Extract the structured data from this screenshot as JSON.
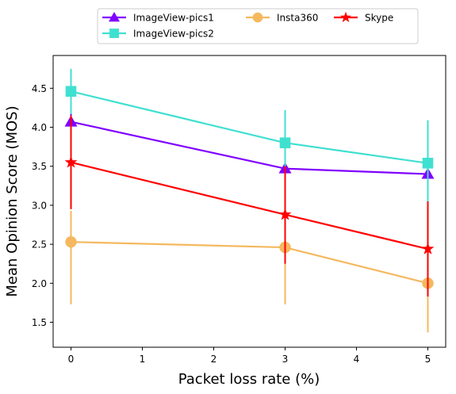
{
  "chart_data": {
    "type": "line",
    "xlabel": "Packet loss rate (%)",
    "ylabel": "Mean Opinion Score (MOS)",
    "xlim": [
      -0.25,
      5.25
    ],
    "ylim": [
      1.18,
      4.92
    ],
    "xticks": [
      0,
      1,
      2,
      3,
      4,
      5
    ],
    "yticks": [
      1.5,
      2.0,
      2.5,
      3.0,
      3.5,
      4.0,
      4.5
    ],
    "x_tick_labels": [
      "0",
      "1",
      "2",
      "3",
      "4",
      "5"
    ],
    "y_tick_labels": [
      "1.5",
      "2.0",
      "2.5",
      "3.0",
      "3.5",
      "4.0",
      "4.5"
    ],
    "grid": false,
    "legend_position": "top-center (outside, above plot)",
    "x": [
      0,
      3,
      5
    ],
    "series": [
      {
        "name": "ImageView-pics1",
        "color": "#8000ff",
        "marker": "triangle",
        "values": [
          4.07,
          3.47,
          3.4
        ],
        "err_low": [
          3.58,
          2.85,
          2.95
        ],
        "err_high": [
          4.58,
          4.15,
          3.85
        ]
      },
      {
        "name": "ImageView-pics2",
        "color": "#40e0d0",
        "marker": "square",
        "values": [
          4.46,
          3.8,
          3.54
        ],
        "err_low": [
          4.17,
          3.32,
          3.02
        ],
        "err_high": [
          4.75,
          4.22,
          4.09
        ]
      },
      {
        "name": "Insta360",
        "color": "#f5b85f",
        "marker": "circle",
        "values": [
          2.53,
          2.46,
          2.0
        ],
        "err_low": [
          1.73,
          1.73,
          1.37
        ],
        "err_high": [
          2.93,
          2.9,
          2.62
        ]
      },
      {
        "name": "Skype",
        "color": "#ff0000",
        "marker": "star",
        "values": [
          3.55,
          2.88,
          2.44
        ],
        "err_low": [
          2.95,
          2.25,
          1.83
        ],
        "err_high": [
          4.15,
          3.5,
          3.05
        ]
      }
    ]
  }
}
